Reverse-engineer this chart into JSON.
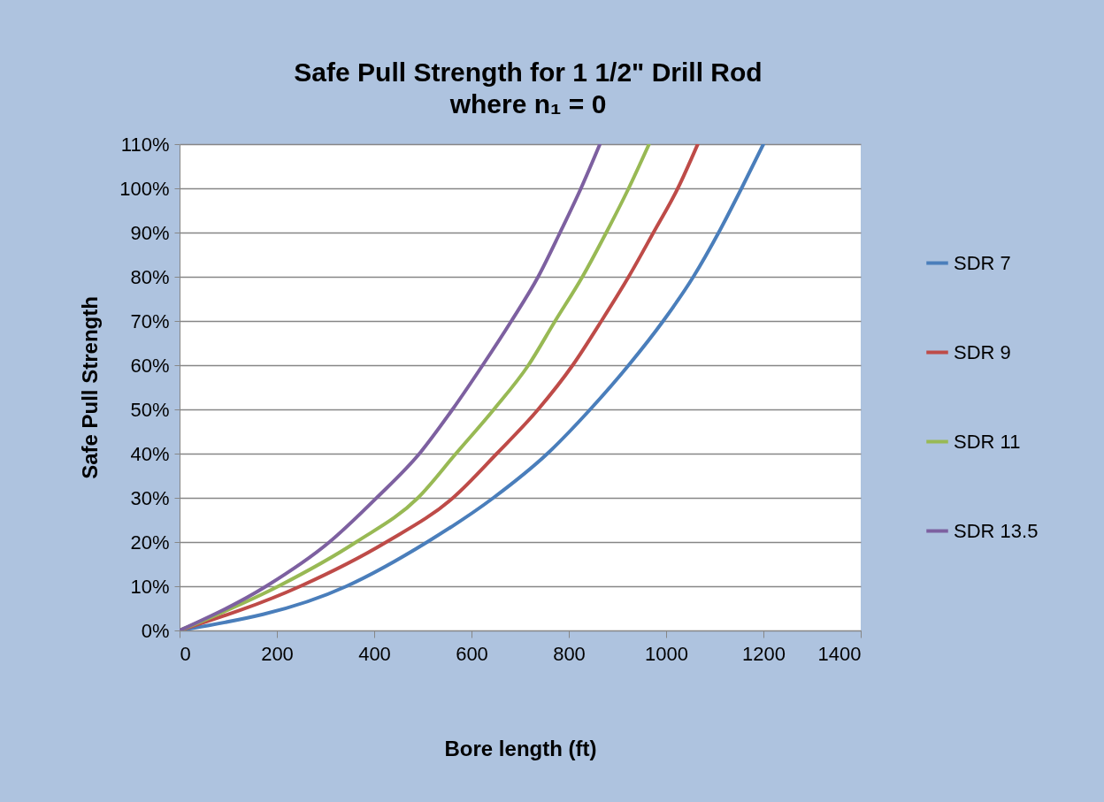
{
  "chart_data": {
    "type": "line",
    "title": "Safe Pull Strength for  1 1/2\" Drill Rod",
    "subtitle": "where n₁ = 0",
    "xlabel": "Bore length  (ft)",
    "ylabel": "Safe Pull  Strength",
    "series": [
      {
        "name": "SDR 7",
        "color": "#4a7ebb",
        "x": [
          0,
          343,
          509,
          645,
          756,
          844,
          923,
          994,
          1056,
          1108,
          1155,
          1200
        ],
        "values": [
          0,
          10,
          20,
          30,
          40,
          50,
          60,
          70,
          80,
          90,
          100,
          110
        ]
      },
      {
        "name": "SDR 9",
        "color": "#be4b48",
        "x": [
          0,
          248,
          425,
          562,
          652,
          737,
          808,
          867,
          923,
          974,
          1024,
          1065
        ],
        "values": [
          0,
          10,
          20,
          30,
          40,
          50,
          60,
          70,
          80,
          90,
          100,
          110
        ]
      },
      {
        "name": "SDR 11",
        "color": "#98b954",
        "x": [
          0,
          203,
          363,
          490,
          568,
          646,
          717,
          772,
          828,
          877,
          923,
          965
        ],
        "values": [
          0,
          10,
          20,
          30,
          40,
          50,
          60,
          70,
          80,
          90,
          100,
          110
        ]
      },
      {
        "name": "SDR 13.5",
        "color": "#7d60a0",
        "x": [
          0,
          178,
          308,
          405,
          493,
          561,
          623,
          682,
          737,
          782,
          825,
          864
        ],
        "values": [
          0,
          10,
          20,
          30,
          40,
          50,
          60,
          70,
          80,
          90,
          100,
          110
        ]
      }
    ],
    "xlim": [
      0,
      1400
    ],
    "xticks": [
      0,
      200,
      400,
      600,
      800,
      1000,
      1200,
      1400
    ],
    "ylim": [
      0,
      110
    ],
    "yticks": [
      {
        "value": 0,
        "label": "0%"
      },
      {
        "value": 10,
        "label": "10%"
      },
      {
        "value": 20,
        "label": "20%"
      },
      {
        "value": 30,
        "label": "30%"
      },
      {
        "value": 40,
        "label": "40%"
      },
      {
        "value": 50,
        "label": "50%"
      },
      {
        "value": 60,
        "label": "60%"
      },
      {
        "value": 70,
        "label": "70%"
      },
      {
        "value": 80,
        "label": "80%"
      },
      {
        "value": 90,
        "label": "90%"
      },
      {
        "value": 100,
        "label": "100%"
      },
      {
        "value": 110,
        "label": "110%"
      }
    ],
    "grid": "y",
    "legend": "right",
    "marker": "none",
    "line_style": "solid"
  }
}
